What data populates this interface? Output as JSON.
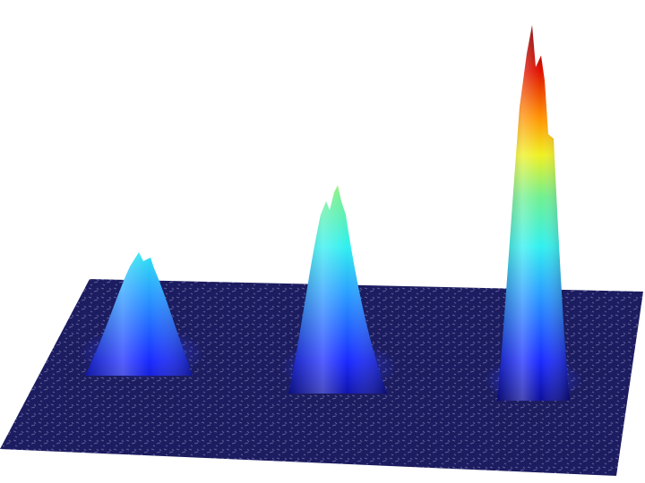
{
  "scene": {
    "background": "#ffffff",
    "floor_color": "#1a1a5e",
    "colormap": [
      "#00007f",
      "#0000ff",
      "#00ffff",
      "#7fff7f",
      "#ffff00",
      "#ff7f00",
      "#ff0000",
      "#7f0000"
    ],
    "peaks": [
      {
        "label": "",
        "relative_height": 0.34
      },
      {
        "label": "",
        "relative_height": 0.55
      },
      {
        "label": "",
        "relative_height": 1.0
      }
    ]
  }
}
